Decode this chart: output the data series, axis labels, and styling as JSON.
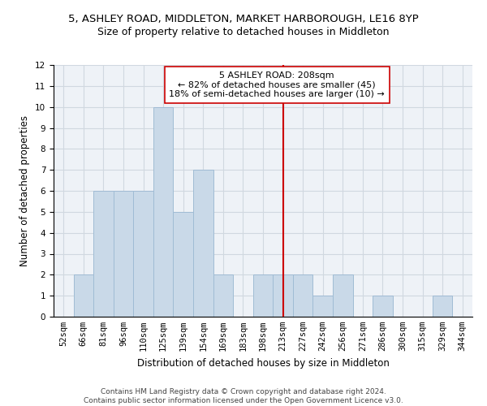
{
  "title_line1": "5, ASHLEY ROAD, MIDDLETON, MARKET HARBOROUGH, LE16 8YP",
  "title_line2": "Size of property relative to detached houses in Middleton",
  "xlabel": "Distribution of detached houses by size in Middleton",
  "ylabel": "Number of detached properties",
  "categories": [
    "52sqm",
    "66sqm",
    "81sqm",
    "96sqm",
    "110sqm",
    "125sqm",
    "139sqm",
    "154sqm",
    "169sqm",
    "183sqm",
    "198sqm",
    "213sqm",
    "227sqm",
    "242sqm",
    "256sqm",
    "271sqm",
    "286sqm",
    "300sqm",
    "315sqm",
    "329sqm",
    "344sqm"
  ],
  "values": [
    0,
    2,
    6,
    6,
    6,
    10,
    5,
    7,
    2,
    0,
    2,
    2,
    2,
    1,
    2,
    0,
    1,
    0,
    0,
    1,
    0
  ],
  "bar_color": "#c9d9e8",
  "bar_edge_color": "#a0bcd4",
  "vline_x_index": 11,
  "vline_color": "#cc0000",
  "annotation_text": "5 ASHLEY ROAD: 208sqm\n← 82% of detached houses are smaller (45)\n18% of semi-detached houses are larger (10) →",
  "annotation_box_color": "#ffffff",
  "annotation_box_edge": "#cc0000",
  "ylim": [
    0,
    12
  ],
  "yticks": [
    0,
    1,
    2,
    3,
    4,
    5,
    6,
    7,
    8,
    9,
    10,
    11,
    12
  ],
  "grid_color": "#d0d8e0",
  "background_color": "#eef2f7",
  "footer_line1": "Contains HM Land Registry data © Crown copyright and database right 2024.",
  "footer_line2": "Contains public sector information licensed under the Open Government Licence v3.0.",
  "title_fontsize": 9.5,
  "subtitle_fontsize": 9,
  "axis_label_fontsize": 8.5,
  "tick_fontsize": 7.5,
  "annotation_fontsize": 8,
  "footer_fontsize": 6.5
}
